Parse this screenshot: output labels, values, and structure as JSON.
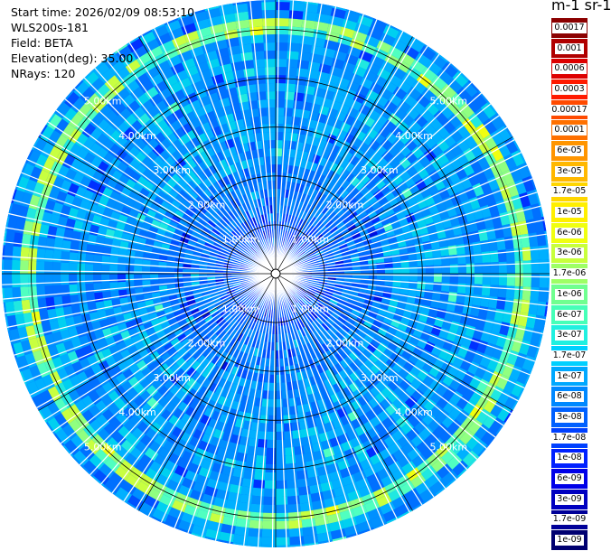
{
  "info": {
    "start_time": "Start time: 2026/02/09 08:53:10",
    "instrument": "WLS200s-181",
    "field": "Field: BETA",
    "elevation": "Elevation(deg): 35.00",
    "nrays": "NRays: 120"
  },
  "unit_label": "m-1 sr-1",
  "colorbar": {
    "labels": [
      "0.0017",
      "0.001",
      "0.0006",
      "0.0003",
      "0.00017",
      "0.0001",
      "6e-05",
      "3e-05",
      "1.7e-05",
      "1e-05",
      "6e-06",
      "3e-06",
      "1.7e-06",
      "1e-06",
      "6e-07",
      "3e-07",
      "1.7e-07",
      "1e-07",
      "6e-08",
      "3e-08",
      "1.7e-08",
      "1e-08",
      "6e-09",
      "3e-09",
      "1.7e-09",
      "1e-09"
    ],
    "colors": [
      "#8b0000",
      "#b00000",
      "#dd0000",
      "#ff1a00",
      "#ff4a00",
      "#ff7000",
      "#ff9500",
      "#ffb800",
      "#ffd600",
      "#ffef00",
      "#f0ff10",
      "#c8ff3c",
      "#9eff66",
      "#70ff90",
      "#46ffb8",
      "#20f0e0",
      "#00d0ff",
      "#00a8ff",
      "#0088ff",
      "#0060ff",
      "#0040ff",
      "#0020ff",
      "#0000e8",
      "#0000c0",
      "#000098",
      "#000070"
    ]
  },
  "chart_data": {
    "type": "heatmap",
    "subtype": "ppi-polar",
    "field": "BETA",
    "n_rays": 120,
    "elevation_deg": 35.0,
    "range_ring_labels": [
      "1.00km",
      "2.00km",
      "3.00km",
      "4.00km",
      "5.00km"
    ],
    "range_rings_km": [
      1,
      2,
      3,
      4,
      5
    ],
    "max_range_km": 5.6,
    "color_scale": "log",
    "color_range": [
      1e-09,
      0.0017
    ],
    "background_level": 3e-08,
    "features": [
      {
        "name": "cloud-arc",
        "range_km": [
          4.9,
          5.3
        ],
        "level": 1e-06
      }
    ]
  }
}
